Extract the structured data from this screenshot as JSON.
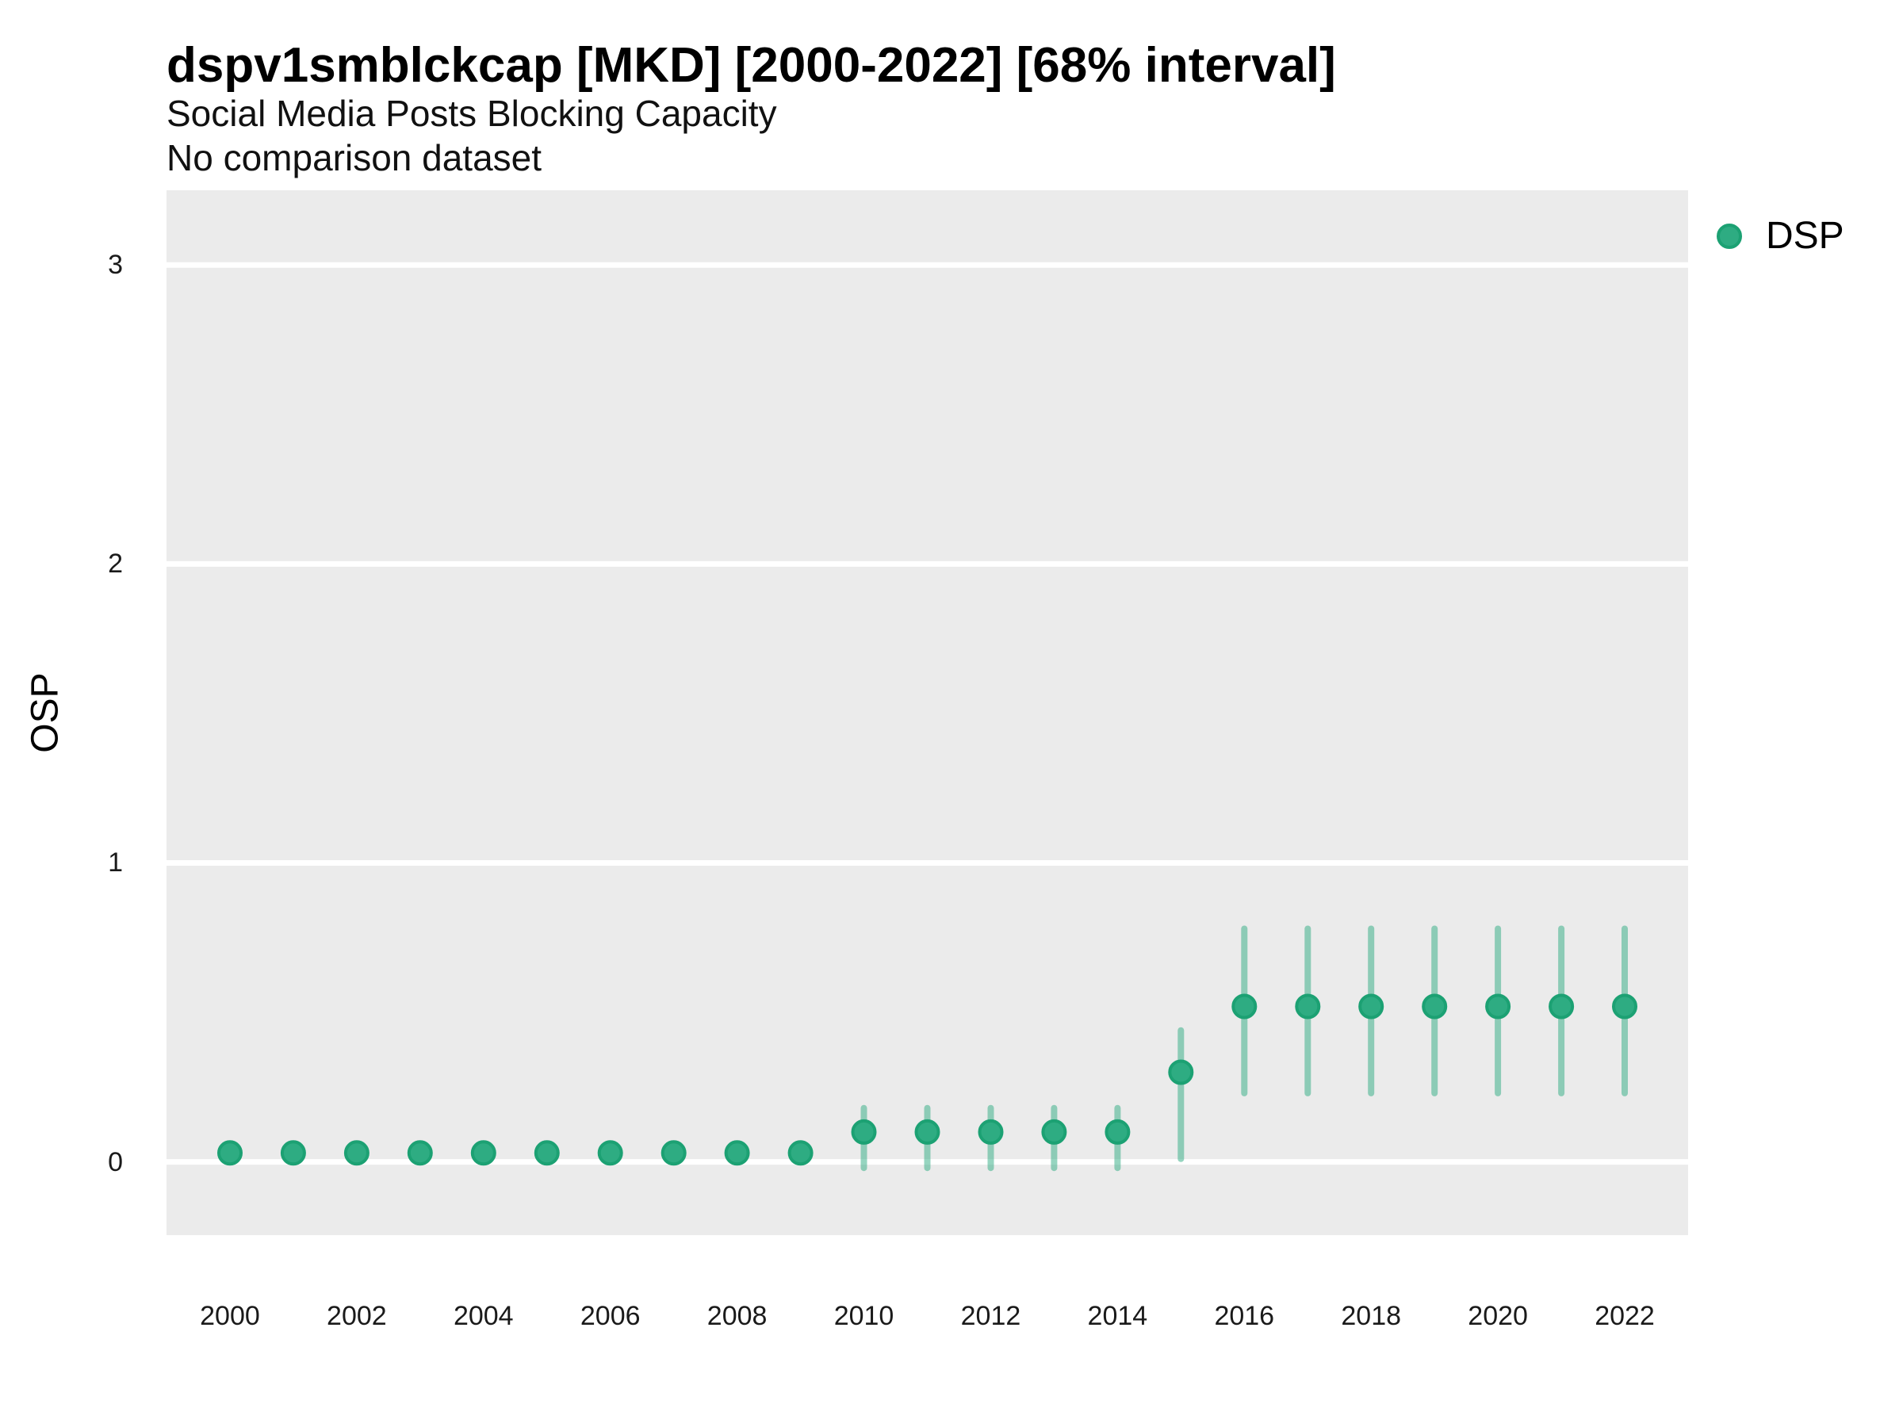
{
  "header": {
    "title": "dspv1smblckcap [MKD] [2000-2022] [68% interval]",
    "subtitle": "Social Media Posts Blocking Capacity",
    "note": "No comparison dataset"
  },
  "legend": {
    "position": "right-top",
    "items": [
      {
        "label": "DSP",
        "marker": "circle"
      }
    ]
  },
  "colors": {
    "point_fill": "#2EAC82",
    "point_stroke": "#1CA173",
    "interval_stroke": "rgba(46,172,130,0.5)",
    "panel_background": "#EBEBEB",
    "gridline": "#FFFFFF",
    "text": "#1a1a1a"
  },
  "axes": {
    "y_label": "OSP",
    "y_ticks": [
      0,
      1,
      2,
      3
    ],
    "x_ticks": [
      2000,
      2002,
      2004,
      2006,
      2008,
      2010,
      2012,
      2014,
      2016,
      2018,
      2020,
      2022
    ]
  },
  "chart_data": {
    "type": "scatter",
    "title": "dspv1smblckcap [MKD] [2000-2022] [68% interval]",
    "subtitle": "Social Media Posts Blocking Capacity",
    "note": "No comparison dataset",
    "xlabel": "",
    "ylabel": "OSP",
    "x_domain": [
      1999,
      2023
    ],
    "y_domain": [
      -0.245,
      3.25
    ],
    "grid": "major-horizontal-only",
    "interval_label": "68% interval",
    "series": [
      {
        "name": "DSP",
        "points": [
          {
            "year": 2000,
            "value": 0.03,
            "lo": null,
            "hi": null
          },
          {
            "year": 2001,
            "value": 0.03,
            "lo": null,
            "hi": null
          },
          {
            "year": 2002,
            "value": 0.03,
            "lo": null,
            "hi": null
          },
          {
            "year": 2003,
            "value": 0.03,
            "lo": null,
            "hi": null
          },
          {
            "year": 2004,
            "value": 0.03,
            "lo": null,
            "hi": null
          },
          {
            "year": 2005,
            "value": 0.03,
            "lo": null,
            "hi": null
          },
          {
            "year": 2006,
            "value": 0.03,
            "lo": null,
            "hi": null
          },
          {
            "year": 2007,
            "value": 0.03,
            "lo": null,
            "hi": null
          },
          {
            "year": 2008,
            "value": 0.03,
            "lo": null,
            "hi": null
          },
          {
            "year": 2009,
            "value": 0.03,
            "lo": null,
            "hi": null
          },
          {
            "year": 2010,
            "value": 0.1,
            "lo": -0.02,
            "hi": 0.18
          },
          {
            "year": 2011,
            "value": 0.1,
            "lo": -0.02,
            "hi": 0.18
          },
          {
            "year": 2012,
            "value": 0.1,
            "lo": -0.02,
            "hi": 0.18
          },
          {
            "year": 2013,
            "value": 0.1,
            "lo": -0.02,
            "hi": 0.18
          },
          {
            "year": 2014,
            "value": 0.1,
            "lo": -0.02,
            "hi": 0.18
          },
          {
            "year": 2015,
            "value": 0.3,
            "lo": 0.01,
            "hi": 0.44
          },
          {
            "year": 2016,
            "value": 0.52,
            "lo": 0.23,
            "hi": 0.78
          },
          {
            "year": 2017,
            "value": 0.52,
            "lo": 0.23,
            "hi": 0.78
          },
          {
            "year": 2018,
            "value": 0.52,
            "lo": 0.23,
            "hi": 0.78
          },
          {
            "year": 2019,
            "value": 0.52,
            "lo": 0.23,
            "hi": 0.78
          },
          {
            "year": 2020,
            "value": 0.52,
            "lo": 0.23,
            "hi": 0.78
          },
          {
            "year": 2021,
            "value": 0.52,
            "lo": 0.23,
            "hi": 0.78
          },
          {
            "year": 2022,
            "value": 0.52,
            "lo": 0.23,
            "hi": 0.78
          }
        ]
      }
    ]
  }
}
